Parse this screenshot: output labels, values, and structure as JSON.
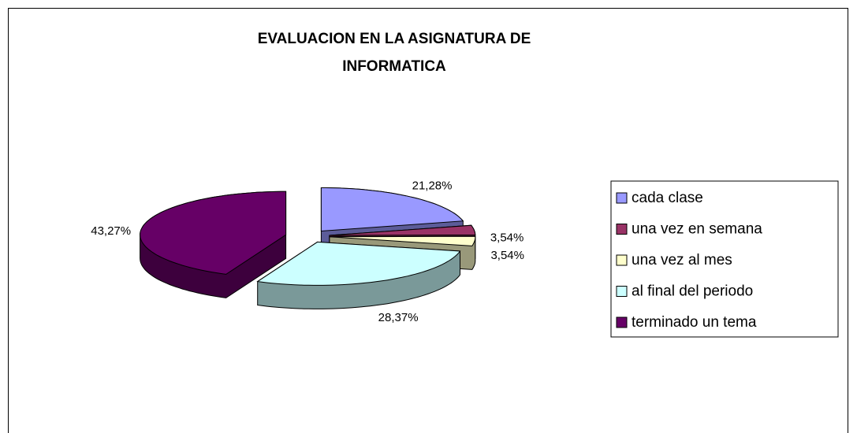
{
  "chart_data": {
    "type": "pie3d",
    "title": "EVALUACION EN LA ASIGNATURA DE INFORMATICA",
    "categories": [
      "cada clase",
      "una vez en semana",
      "una vez al mes",
      "al final del periodo",
      "terminado un tema"
    ],
    "values": [
      21.28,
      3.54,
      3.54,
      28.37,
      43.27
    ],
    "value_labels": [
      "21,28%",
      "3,54%",
      "3,54%",
      "28,37%",
      "43,27%"
    ],
    "colors": [
      "#9999ff",
      "#993366",
      "#ffffcc",
      "#ccffff",
      "#660066"
    ],
    "legend": "right"
  }
}
